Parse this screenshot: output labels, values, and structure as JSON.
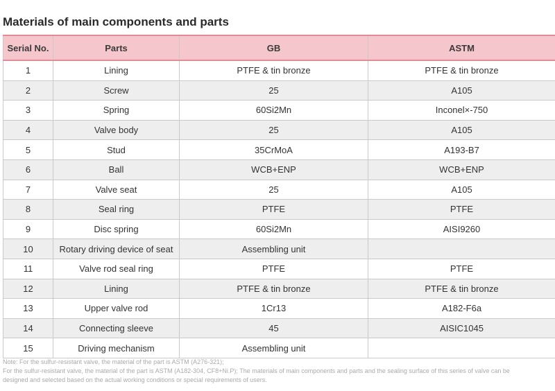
{
  "title": "Materials of main components and parts",
  "headers": {
    "serial": "Serial No.",
    "parts": "Parts",
    "gb": "GB",
    "astm": "ASTM"
  },
  "rows": [
    {
      "no": "1",
      "part": "Lining",
      "gb": "PTFE & tin bronze",
      "astm": "PTFE & tin bronze"
    },
    {
      "no": "2",
      "part": "Screw",
      "gb": "25",
      "astm": "A105"
    },
    {
      "no": "3",
      "part": "Spring",
      "gb": "60Si2Mn",
      "astm": "Inconel×-750"
    },
    {
      "no": "4",
      "part": "Valve body",
      "gb": "25",
      "astm": "A105"
    },
    {
      "no": "5",
      "part": "Stud",
      "gb": "35CrMoA",
      "astm": "A193-B7"
    },
    {
      "no": "6",
      "part": "Ball",
      "gb": "WCB+ENP",
      "astm": "WCB+ENP"
    },
    {
      "no": "7",
      "part": "Valve seat",
      "gb": "25",
      "astm": "A105"
    },
    {
      "no": "8",
      "part": "Seal ring",
      "gb": "PTFE",
      "astm": "PTFE"
    },
    {
      "no": "9",
      "part": "Disc spring",
      "gb": "60Si2Mn",
      "astm": "AISI9260"
    },
    {
      "no": "10",
      "part": "Rotary driving device of seat",
      "gb": "Assembling unit",
      "astm": ""
    },
    {
      "no": "11",
      "part": "Valve rod seal ring",
      "gb": "PTFE",
      "astm": "PTFE"
    },
    {
      "no": "12",
      "part": "Lining",
      "gb": "PTFE & tin bronze",
      "astm": "PTFE & tin bronze"
    },
    {
      "no": "13",
      "part": "Upper valve rod",
      "gb": "1Cr13",
      "astm": "A182-F6a"
    },
    {
      "no": "14",
      "part": "Connecting sleeve",
      "gb": "45",
      "astm": "AISIC1045"
    },
    {
      "no": "15",
      "part": "Driving mechanism",
      "gb": "Assembling unit",
      "astm": ""
    }
  ],
  "notes": [
    "Note: For the sulfur-resistant valve, the material of the part is ASTM (A276-321);",
    "For the sulfur-resistant valve, the material of the part is ASTM (A182-304, CF8+Ni.P); The materials of main components and parts and the sealing surface of this series of valve can be",
    "designed and selected based on the actual working conditions or special requirements of users."
  ],
  "colors": {
    "header_bg": "#f5c6cc",
    "header_border": "#e48a95",
    "row_shade": "#eeeeee"
  }
}
